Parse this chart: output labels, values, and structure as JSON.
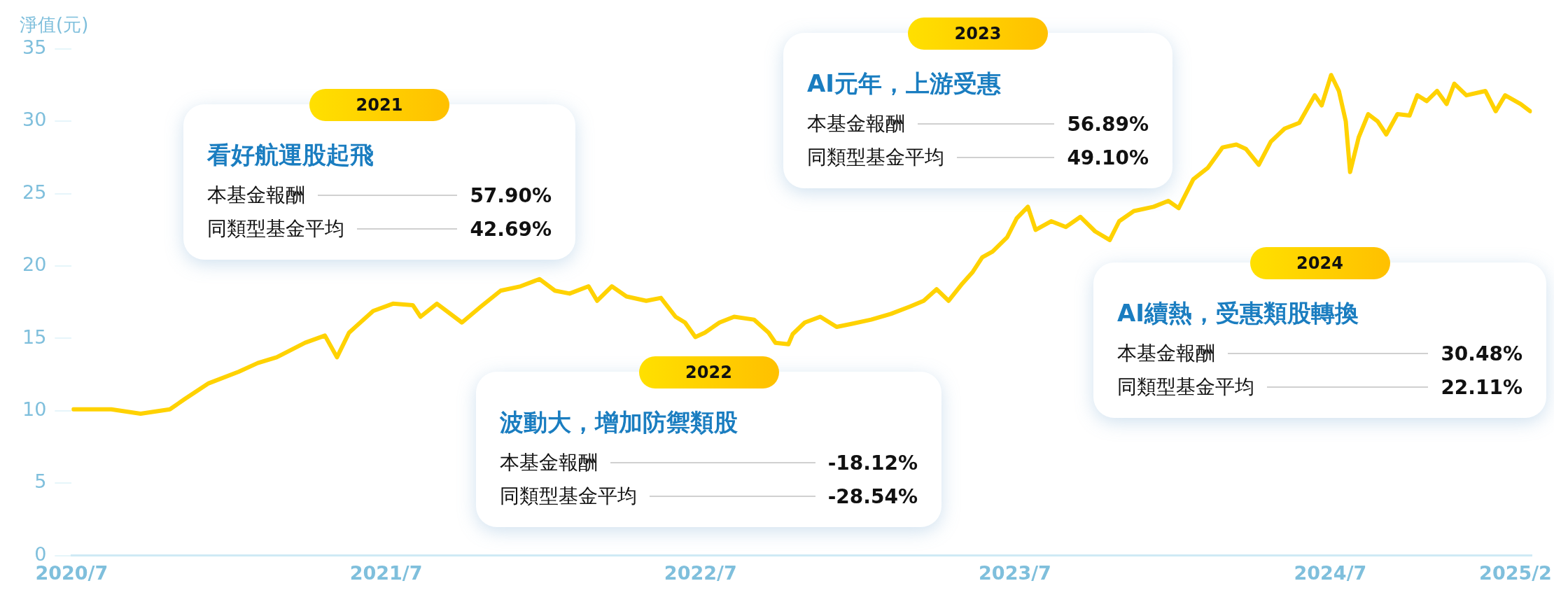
{
  "chart_data": {
    "type": "line",
    "ylabel": "淨值(元)",
    "x": [
      "2020-07-03",
      "2020-08-16",
      "2020-09-19",
      "2020-10-23",
      "2020-11-09",
      "2020-12-07",
      "2021-01-11",
      "2021-02-02",
      "2021-02-24",
      "2021-03-29",
      "2021-04-21",
      "2021-05-05",
      "2021-05-19",
      "2021-06-16",
      "2021-07-09",
      "2021-08-01",
      "2021-08-10",
      "2021-08-29",
      "2021-09-27",
      "2021-10-19",
      "2021-11-11",
      "2021-12-04",
      "2021-12-26",
      "2022-01-13",
      "2022-01-30",
      "2022-02-21",
      "2022-03-03",
      "2022-03-20",
      "2022-04-06",
      "2022-04-29",
      "2022-05-16",
      "2022-06-02",
      "2022-06-13",
      "2022-06-25",
      "2022-07-06",
      "2022-07-23",
      "2022-08-09",
      "2022-09-01",
      "2022-09-18",
      "2022-09-26",
      "2022-10-11",
      "2022-10-16",
      "2022-10-30",
      "2022-11-17",
      "2022-12-06",
      "2022-12-23",
      "2023-01-15",
      "2023-02-07",
      "2023-03-01",
      "2023-03-17",
      "2023-04-01",
      "2023-04-15",
      "2023-05-01",
      "2023-05-13",
      "2023-05-24",
      "2023-06-05",
      "2023-06-22",
      "2023-07-03",
      "2023-07-16",
      "2023-07-25",
      "2023-08-12",
      "2023-08-29",
      "2023-09-15",
      "2023-10-02",
      "2023-10-19",
      "2023-10-30",
      "2023-11-16",
      "2023-12-09",
      "2023-12-26",
      "2024-01-07",
      "2024-01-24",
      "2024-02-10",
      "2024-02-27",
      "2024-03-14",
      "2024-03-25",
      "2024-04-09",
      "2024-04-23",
      "2024-05-09",
      "2024-05-26",
      "2024-06-13",
      "2024-06-21",
      "2024-07-02",
      "2024-07-11",
      "2024-07-19",
      "2024-07-24",
      "2024-08-03",
      "2024-08-14",
      "2024-08-25",
      "2024-09-04",
      "2024-09-17",
      "2024-10-01",
      "2024-10-10",
      "2024-10-21",
      "2024-11-02",
      "2024-11-13",
      "2024-11-22",
      "2024-12-06",
      "2024-12-28",
      "2025-01-09",
      "2025-01-20",
      "2025-02-07",
      "2025-02-18"
    ],
    "series": [
      {
        "color": "#ffd200",
        "values": [
          10.1,
          10.1,
          9.8,
          10.1,
          10.8,
          11.9,
          12.7,
          13.3,
          13.7,
          14.7,
          15.2,
          13.7,
          15.4,
          16.9,
          17.4,
          17.3,
          16.5,
          17.4,
          16.1,
          17.2,
          18.3,
          18.6,
          19.1,
          18.3,
          18.1,
          18.6,
          17.6,
          18.6,
          17.9,
          17.6,
          17.8,
          16.5,
          16.1,
          15.1,
          15.4,
          16.1,
          16.5,
          16.3,
          15.4,
          14.7,
          14.6,
          15.3,
          16.1,
          16.5,
          15.8,
          16.0,
          16.3,
          16.7,
          17.2,
          17.6,
          18.4,
          17.6,
          18.8,
          19.6,
          20.6,
          21.0,
          22.0,
          23.3,
          24.1,
          22.5,
          23.1,
          22.7,
          23.4,
          22.4,
          21.8,
          23.1,
          23.8,
          24.1,
          24.5,
          24.0,
          26.0,
          26.8,
          28.2,
          28.4,
          28.1,
          27.0,
          28.6,
          29.5,
          29.9,
          31.8,
          31.1,
          33.2,
          32.1,
          30.0,
          26.5,
          28.9,
          30.5,
          30.0,
          29.1,
          30.5,
          30.4,
          31.8,
          31.4,
          32.1,
          31.2,
          32.6,
          31.8,
          32.1,
          30.7,
          31.8,
          31.2,
          30.7
        ]
      }
    ],
    "xlim": [
      "2020-07-01",
      "2025-02-20"
    ],
    "xticks": [
      {
        "value": "2020-07-01",
        "label": "2020/7"
      },
      {
        "value": "2021-07-01",
        "label": "2021/7"
      },
      {
        "value": "2022-07-01",
        "label": "2022/7"
      },
      {
        "value": "2023-07-01",
        "label": "2023/7"
      },
      {
        "value": "2024-07-01",
        "label": "2024/7"
      },
      {
        "value": "2025-02-01",
        "label": "2025/2"
      }
    ],
    "ylim": [
      0,
      35
    ],
    "yticks": [
      0,
      5,
      10,
      15,
      20,
      25,
      30,
      35
    ],
    "annotations": [
      "2021",
      "看好航運股起飛",
      "本基金報酬",
      "57.90%",
      "同類型基金平均",
      "42.69%",
      "2022",
      "波動大，增加防禦類股",
      "本基金報酬",
      "-18.12%",
      "同類型基金平均",
      "-28.54%",
      "2023",
      "AI元年，上游受惠",
      "本基金報酬",
      "56.89%",
      "同類型基金平均",
      "49.10%",
      "2024",
      "AI續熱，受惠類股轉換",
      "本基金報酬",
      "30.48%",
      "同類型基金平均",
      "22.11%"
    ]
  }
}
